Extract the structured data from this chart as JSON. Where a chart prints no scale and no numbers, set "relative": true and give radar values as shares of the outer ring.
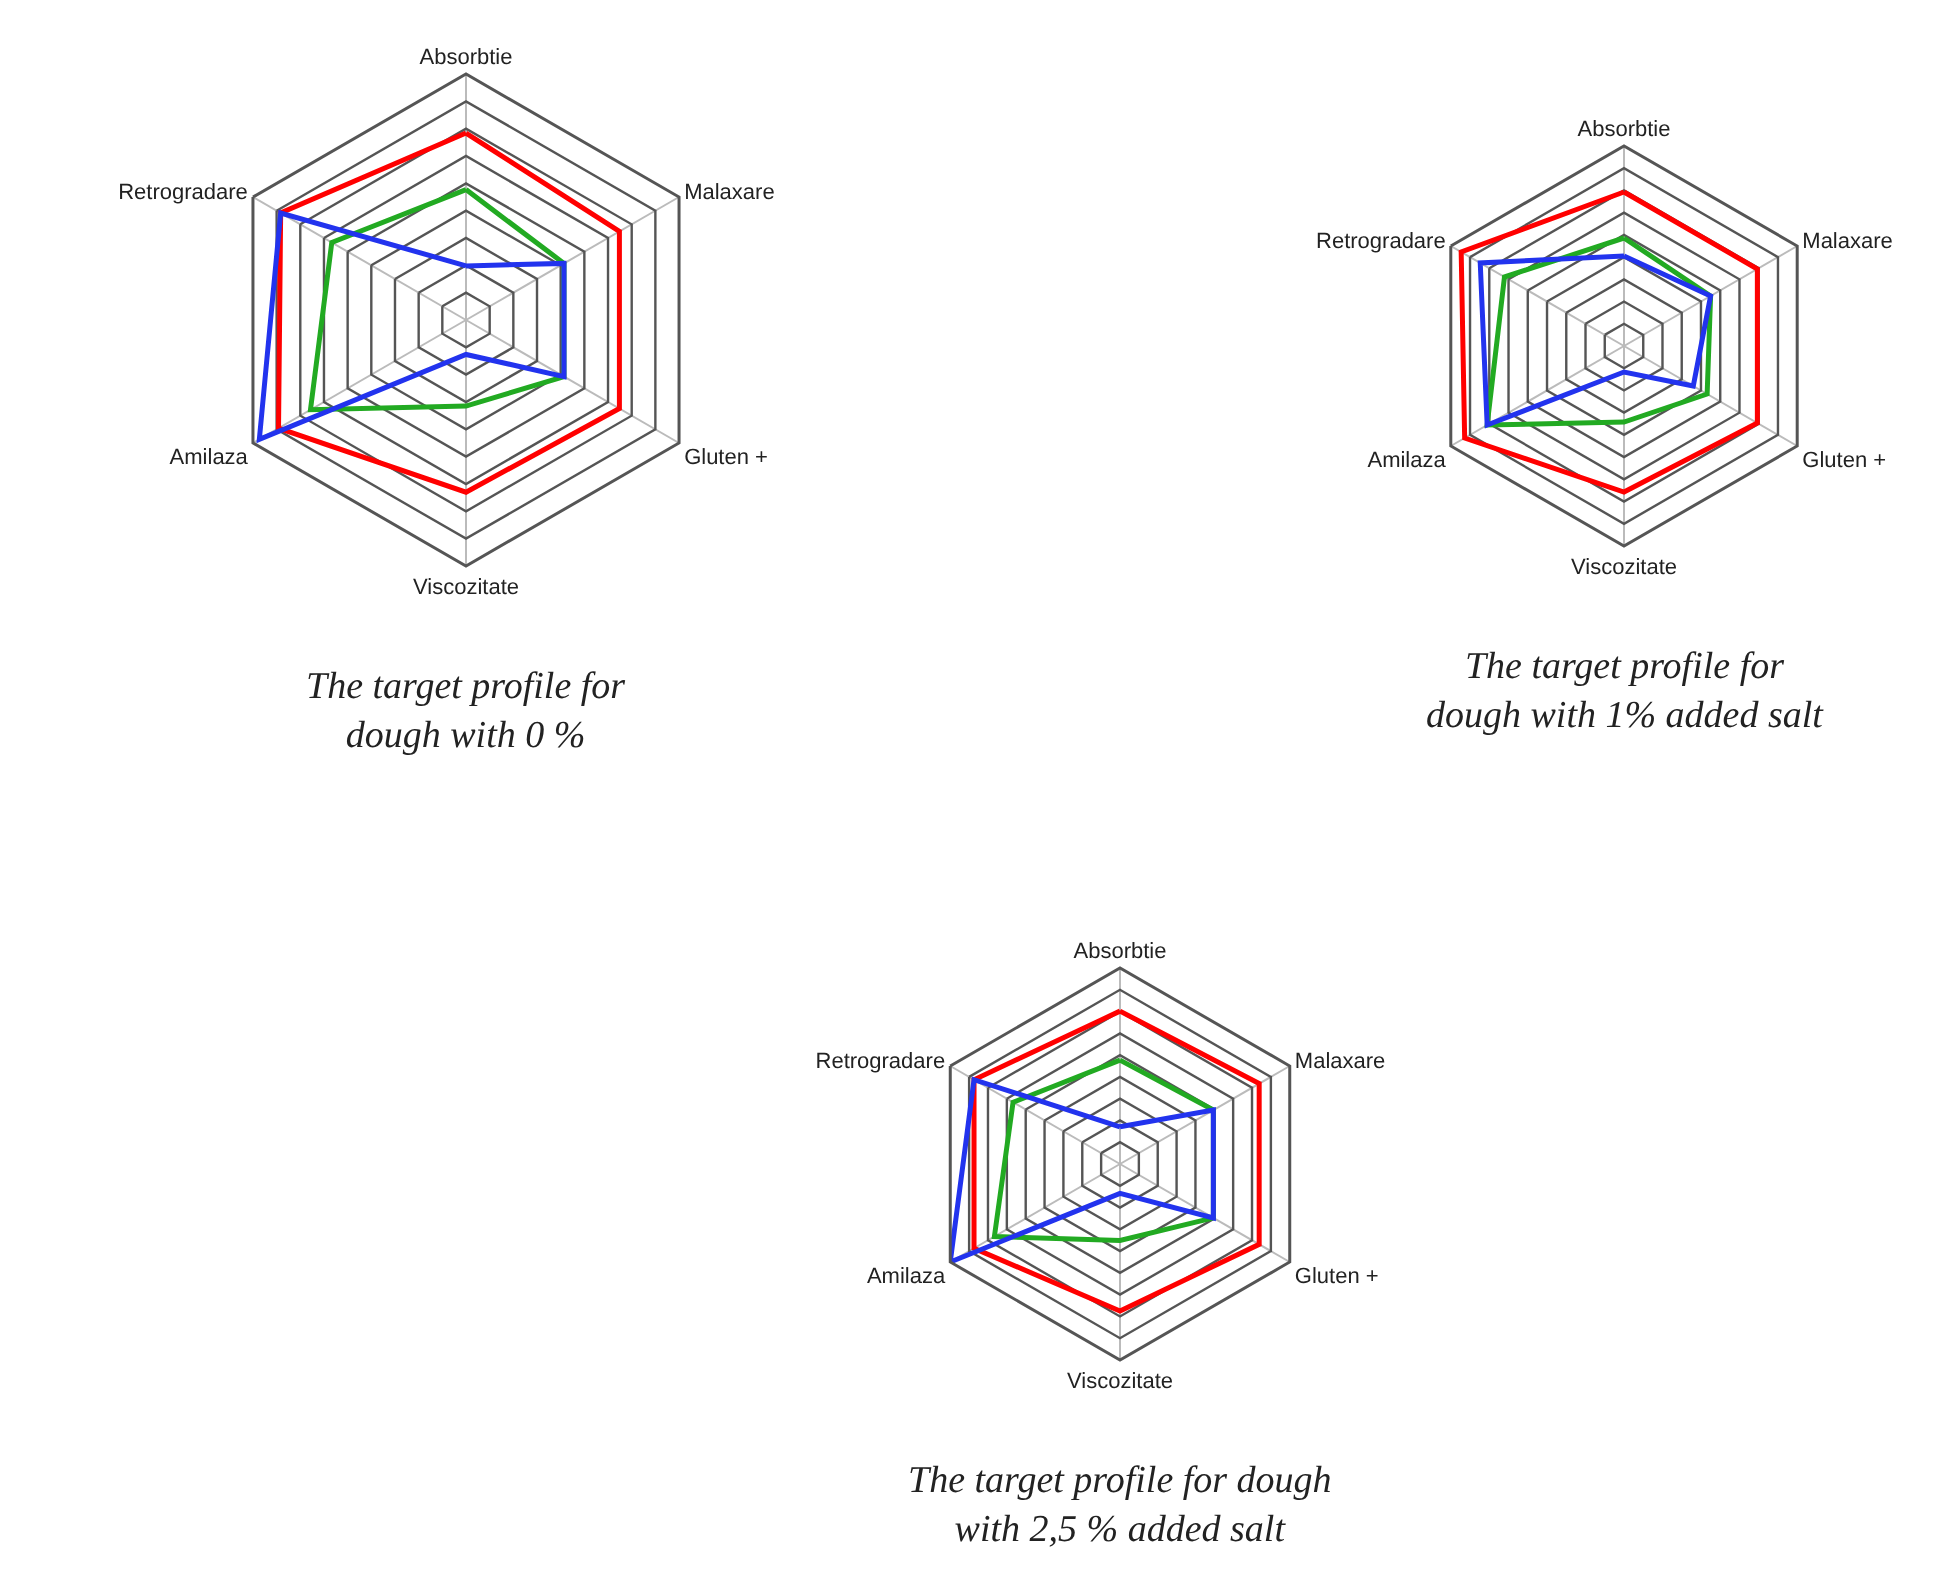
{
  "chart_data": [
    {
      "type": "radar",
      "title": "The target profile for\ndough with 0 %",
      "relative": true,
      "grid": true,
      "marker": "none",
      "line_style": "solid",
      "categories": [
        "Absorbtie",
        "Malaxare",
        "Gluten +",
        "Viscozitate",
        "Amilaza",
        "Retrogradare"
      ],
      "series": [
        {
          "color": "#ff0000",
          "values": [
            0.76,
            0.72,
            0.72,
            0.7,
            0.88,
            0.87
          ]
        },
        {
          "color": "#22aa22",
          "values": [
            0.53,
            0.46,
            0.46,
            0.35,
            0.73,
            0.63
          ]
        },
        {
          "color": "#2233ee",
          "values": [
            0.22,
            0.46,
            0.46,
            0.14,
            0.97,
            0.87
          ]
        }
      ]
    },
    {
      "type": "radar",
      "title": "The target profile for\ndough with 1% added salt",
      "relative": true,
      "grid": true,
      "marker": "none",
      "line_style": "solid",
      "categories": [
        "Absorbtie",
        "Malaxare",
        "Gluten +",
        "Viscozitate",
        "Amilaza",
        "Retrogradare"
      ],
      "series": [
        {
          "color": "#ff0000",
          "values": [
            0.77,
            0.77,
            0.77,
            0.73,
            0.92,
            0.94
          ]
        },
        {
          "color": "#22aa22",
          "values": [
            0.54,
            0.5,
            0.48,
            0.38,
            0.79,
            0.69
          ]
        },
        {
          "color": "#2233ee",
          "values": [
            0.45,
            0.5,
            0.4,
            0.13,
            0.79,
            0.83
          ]
        }
      ]
    },
    {
      "type": "radar",
      "title": "The target profile for dough\nwith 2,5 % added salt",
      "relative": true,
      "grid": true,
      "marker": "none",
      "line_style": "solid",
      "categories": [
        "Absorbtie",
        "Malaxare",
        "Gluten +",
        "Viscozitate",
        "Amilaza",
        "Retrogradare"
      ],
      "series": [
        {
          "color": "#ff0000",
          "values": [
            0.78,
            0.82,
            0.82,
            0.75,
            0.86,
            0.86
          ]
        },
        {
          "color": "#22aa22",
          "values": [
            0.53,
            0.55,
            0.55,
            0.39,
            0.74,
            0.63
          ]
        },
        {
          "color": "#2233ee",
          "values": [
            0.19,
            0.55,
            0.55,
            0.15,
            1,
            0.86
          ]
        }
      ]
    }
  ]
}
